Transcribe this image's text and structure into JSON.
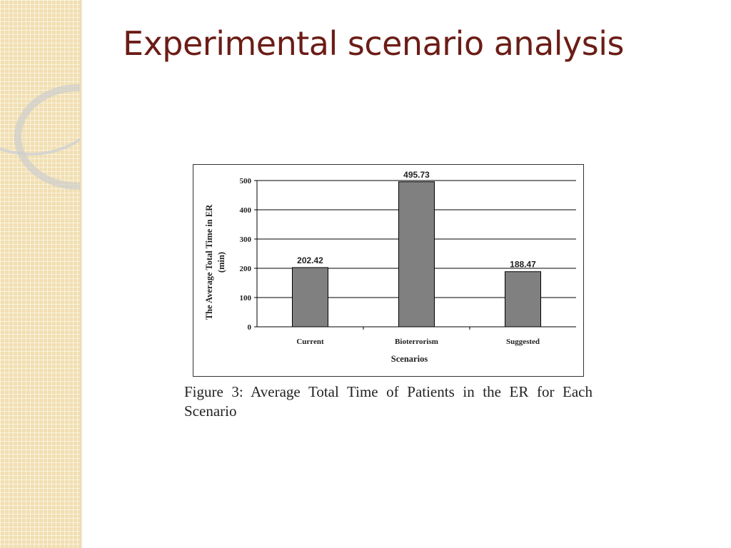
{
  "slide": {
    "title": "Experimental scenario analysis"
  },
  "figure": {
    "caption": "Figure 3: Average Total Time of Patients in the ER for Each Scenario"
  },
  "colors": {
    "bar_fill": "#808080",
    "title_color": "#6b1d16",
    "side_band": "#f1dfb2"
  },
  "chart_data": {
    "type": "bar",
    "categories": [
      "Current",
      "Bioterrorism",
      "Suggested"
    ],
    "values": [
      202.42,
      495.73,
      188.47
    ],
    "value_labels": [
      "202.42",
      "495.73",
      "188.47"
    ],
    "title": "",
    "xlabel": "Scenarios",
    "ylabel_lines": [
      "The Average Total Time in ER",
      "(min)"
    ],
    "ylim": [
      0,
      500
    ],
    "yticks": [
      0,
      100,
      200,
      300,
      400,
      500
    ],
    "grid": true,
    "legend": "none"
  }
}
